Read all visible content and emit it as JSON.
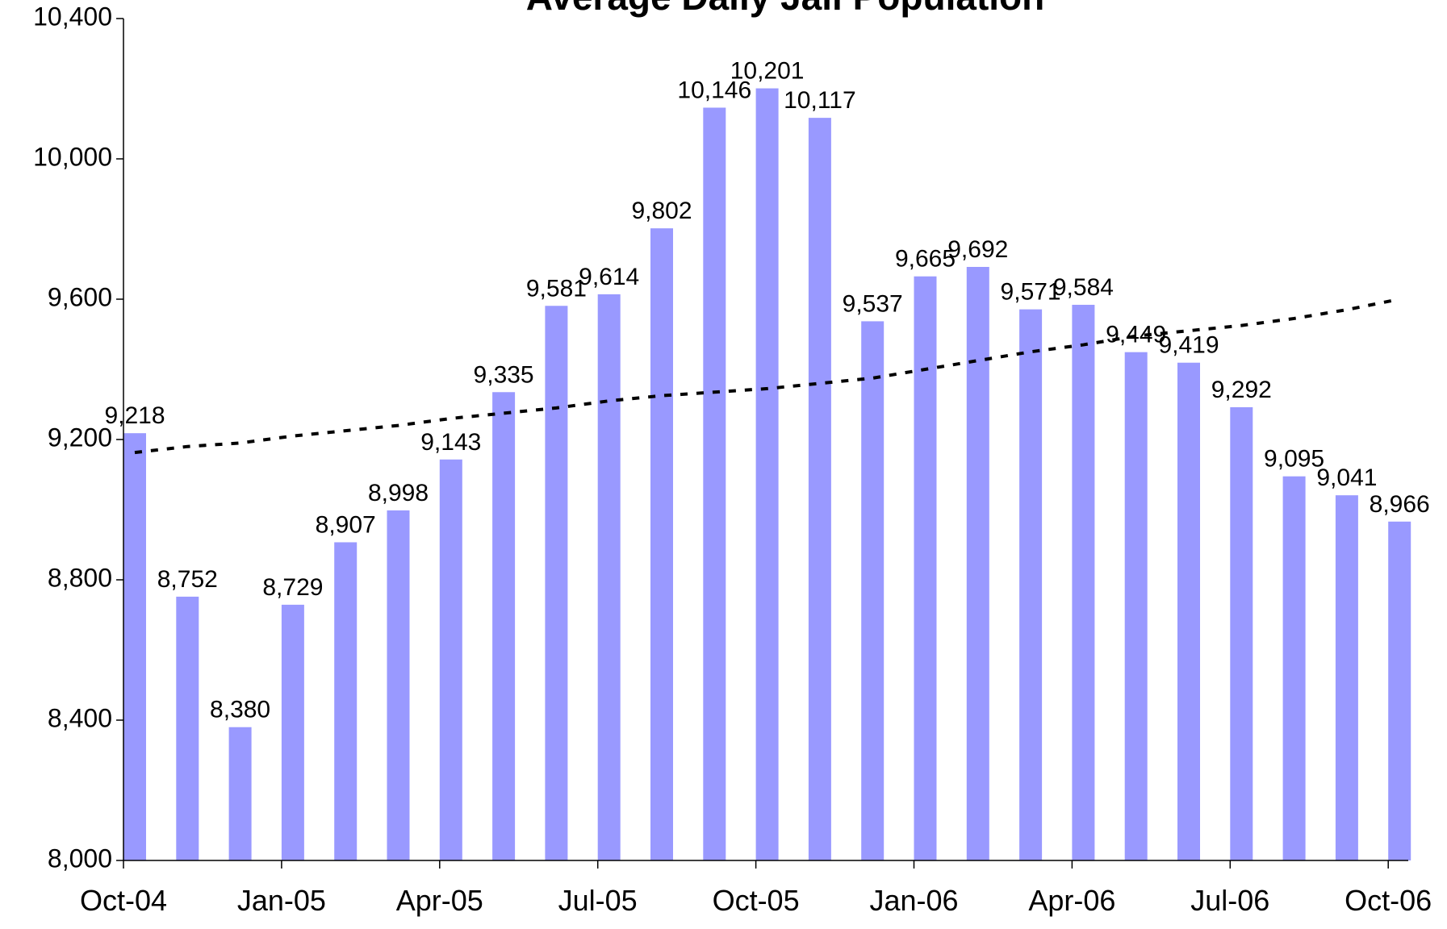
{
  "chart_data": {
    "type": "bar",
    "title": "Average Daily Jail Population",
    "categories": [
      "Oct-04",
      null,
      null,
      "Jan-05",
      null,
      null,
      "Apr-05",
      null,
      null,
      "Jul-05",
      null,
      null,
      "Oct-05",
      null,
      null,
      "Jan-06",
      null,
      null,
      "Apr-06",
      null,
      null,
      "Jul-06",
      null,
      null,
      "Oct-06"
    ],
    "values": [
      9218,
      8752,
      8380,
      8729,
      8907,
      8998,
      9143,
      9335,
      9581,
      9614,
      9802,
      10146,
      10201,
      10117,
      9537,
      9665,
      9692,
      9571,
      9584,
      9449,
      9419,
      9292,
      9095,
      9041,
      8966
    ],
    "value_labels": [
      "9,218",
      "8,752",
      "8,380",
      "8,729",
      "8,907",
      "8,998",
      "9,143",
      "9,335",
      "9,581",
      "9,614",
      "9,802",
      "10,146",
      "10,201",
      "10,117",
      "9,537",
      "9,665",
      "9,692",
      "9,571",
      "9,584",
      "9,449",
      "9,419",
      "9,292",
      "9,095",
      "9,041",
      "8,966"
    ],
    "color": "#9999ff",
    "trend": {
      "color": "#000000",
      "dashed": true,
      "values": [
        9163,
        9180,
        9190,
        9210,
        9225,
        9240,
        9260,
        9275,
        9290,
        9310,
        9325,
        9335,
        9345,
        9360,
        9375,
        9400,
        9425,
        9450,
        9470,
        9495,
        9510,
        9525,
        9545,
        9570,
        9600
      ]
    },
    "ylim": [
      8000,
      10400
    ],
    "yticks": [
      {
        "value": 8000,
        "label": "8,000"
      },
      {
        "value": 8400,
        "label": "8,400"
      },
      {
        "value": 8800,
        "label": "8,800"
      },
      {
        "value": 9200,
        "label": "9,200"
      },
      {
        "value": 9600,
        "label": "9,600"
      },
      {
        "value": 10000,
        "label": "10,000"
      },
      {
        "value": 10400,
        "label": "10,400"
      }
    ],
    "grid": false
  }
}
